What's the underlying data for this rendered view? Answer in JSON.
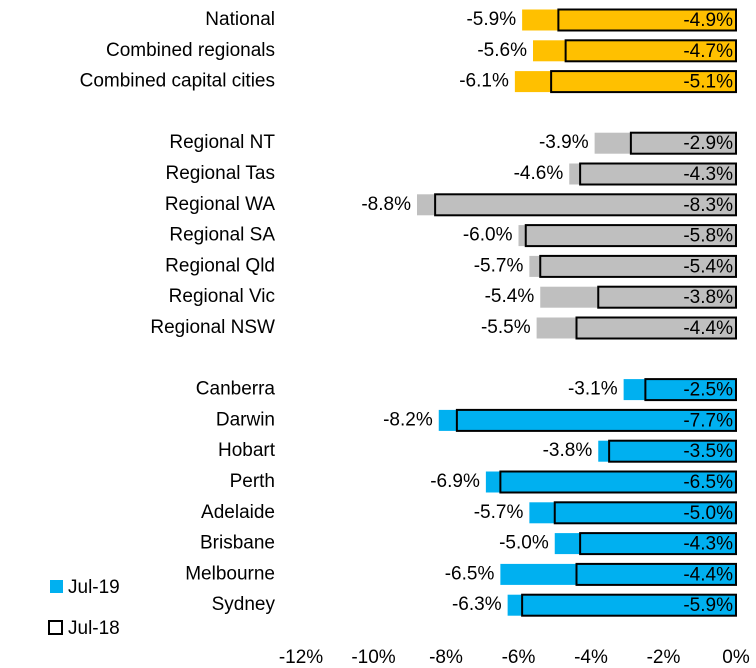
{
  "chart_data": {
    "type": "bar",
    "orientation": "horizontal",
    "categories": [
      "National",
      "Combined regionals",
      "Combined capital cities",
      null,
      "Regional NT",
      "Regional Tas",
      "Regional WA",
      "Regional SA",
      "Regional Qld",
      "Regional Vic",
      "Regional NSW",
      null,
      "Canberra",
      "Darwin",
      "Hobart",
      "Perth",
      "Adelaide",
      "Brisbane",
      "Melbourne",
      "Sydney"
    ],
    "series": [
      {
        "name": "Jul-19",
        "color": "#00B0F0",
        "colors": [
          "#FFC000",
          "#FFC000",
          "#FFC000",
          null,
          "#BFBFBF",
          "#BFBFBF",
          "#BFBFBF",
          "#BFBFBF",
          "#BFBFBF",
          "#BFBFBF",
          "#BFBFBF",
          null,
          "#00B0F0",
          "#00B0F0",
          "#00B0F0",
          "#00B0F0",
          "#00B0F0",
          "#00B0F0",
          "#00B0F0",
          "#00B0F0"
        ],
        "values": [
          -5.9,
          -5.6,
          -6.1,
          null,
          -3.9,
          -4.6,
          -8.8,
          -6.0,
          -5.7,
          -5.4,
          -5.5,
          null,
          -3.1,
          -8.2,
          -3.8,
          -6.9,
          -5.7,
          -5.0,
          -6.5,
          -6.3
        ],
        "value_labels": [
          "-5.9%",
          "-5.6%",
          "-6.1%",
          null,
          "-3.9%",
          "-4.6%",
          "-8.8%",
          "-6.0%",
          "-5.7%",
          "-5.4%",
          "-5.5%",
          null,
          "-3.1%",
          "-8.2%",
          "-3.8%",
          "-6.9%",
          "-5.7%",
          "-5.0%",
          "-6.5%",
          "-6.3%"
        ]
      },
      {
        "name": "Jul-18",
        "color": "#000000",
        "values": [
          -4.9,
          -4.7,
          -5.1,
          null,
          -2.9,
          -4.3,
          -8.3,
          -5.8,
          -5.4,
          -3.8,
          -4.4,
          null,
          -2.5,
          -7.7,
          -3.5,
          -6.5,
          -5.0,
          -4.3,
          -4.4,
          -5.9
        ],
        "value_labels": [
          "-4.9%",
          "-4.7%",
          "-5.1%",
          null,
          "-2.9%",
          "-4.3%",
          "-8.3%",
          "-5.8%",
          "-5.4%",
          "-3.8%",
          "-4.4%",
          null,
          "-2.5%",
          "-7.7%",
          "-3.5%",
          "-6.5%",
          "-5.0%",
          "-4.3%",
          "-4.4%",
          "-5.9%"
        ]
      }
    ],
    "xlim": [
      -12,
      0
    ],
    "xticks": [
      {
        "value": -12,
        "label": "-12%"
      },
      {
        "value": -10,
        "label": "-10%"
      },
      {
        "value": -8,
        "label": "-8%"
      },
      {
        "value": -6,
        "label": "-6%"
      },
      {
        "value": -4,
        "label": "-4%"
      },
      {
        "value": -2,
        "label": "-2%"
      },
      {
        "value": 0,
        "label": "0%"
      }
    ],
    "legend": "lower left"
  }
}
